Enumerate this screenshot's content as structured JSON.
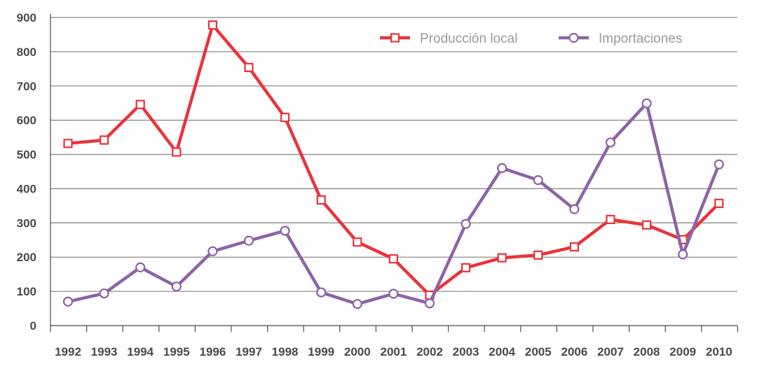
{
  "chart_data": {
    "type": "line",
    "title": "",
    "xlabel": "",
    "ylabel": "",
    "x": [
      "1992",
      "1993",
      "1994",
      "1995",
      "1996",
      "1997",
      "1998",
      "1999",
      "2000",
      "2001",
      "2002",
      "2003",
      "2004",
      "2005",
      "2006",
      "2007",
      "2008",
      "2009",
      "2010"
    ],
    "ylim": [
      0,
      900
    ],
    "yticks": [
      "0",
      "100",
      "200",
      "300",
      "400",
      "500",
      "600",
      "700",
      "800",
      "900"
    ],
    "grid": true,
    "legend": "top-right",
    "series": [
      {
        "name": "Producción local",
        "color": "#e8343a",
        "marker": "square",
        "values": [
          532,
          542,
          646,
          507,
          878,
          754,
          608,
          367,
          244,
          195,
          89,
          169,
          198,
          206,
          230,
          310,
          294,
          251,
          357
        ]
      },
      {
        "name": "Importaciones",
        "color": "#8e62a8",
        "marker": "circle",
        "values": [
          70,
          94,
          170,
          114,
          217,
          248,
          277,
          97,
          63,
          93,
          65,
          297,
          460,
          425,
          340,
          535,
          649,
          208,
          471
        ]
      }
    ],
    "colors": {
      "grid": "#8c8c8c",
      "axis": "#4a4a4a",
      "tick_text": "#4a4a4a",
      "legend_text": "#9a9a9a"
    }
  }
}
